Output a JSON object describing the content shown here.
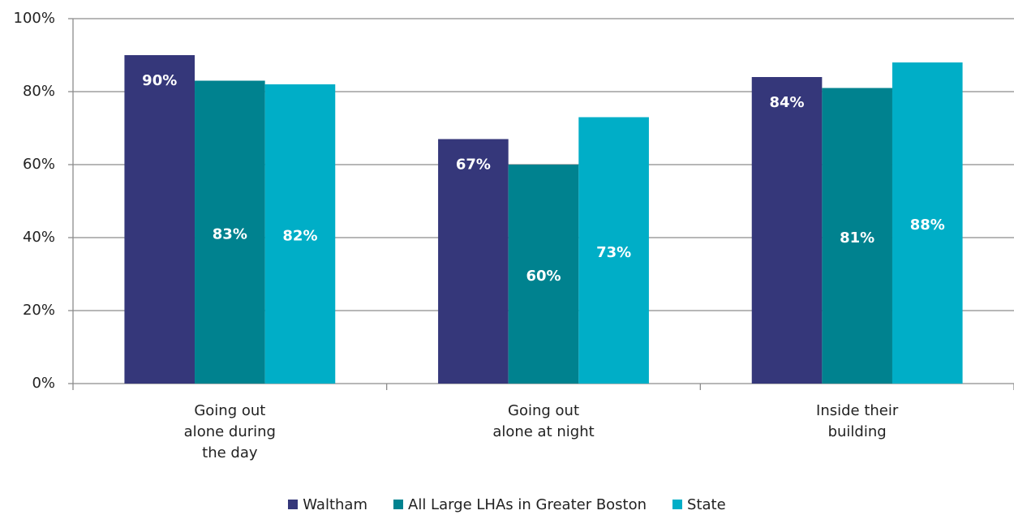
{
  "chart_data": {
    "type": "bar",
    "categories": [
      "Going out\nalone during\nthe day",
      "Going out\nalone at night",
      "Inside their\nbuilding"
    ],
    "series": [
      {
        "name": "Waltham",
        "color": "#35377a",
        "values": [
          90,
          67,
          84
        ],
        "value_labels": [
          "90%",
          "67%",
          "84%"
        ]
      },
      {
        "name": "All Large LHAs in Greater Boston",
        "color": "#00828f",
        "values": [
          83,
          60,
          81
        ],
        "value_labels": [
          "83%",
          "60%",
          "81%"
        ]
      },
      {
        "name": "State",
        "color": "#00aec7",
        "values": [
          82,
          73,
          88
        ],
        "value_labels": [
          "82%",
          "73%",
          "88%"
        ]
      }
    ],
    "ylim": [
      0,
      100
    ],
    "yticks": [
      {
        "value": 0,
        "label": "0%"
      },
      {
        "value": 20,
        "label": "20%"
      },
      {
        "value": 40,
        "label": "40%"
      },
      {
        "value": 60,
        "label": "60%"
      },
      {
        "value": 80,
        "label": "80%"
      },
      {
        "value": 100,
        "label": "100%"
      }
    ],
    "grid": true,
    "legend": "bottom"
  }
}
